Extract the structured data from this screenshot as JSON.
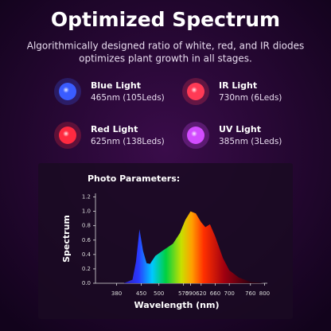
{
  "header": {
    "title": "Optimized Spectrum",
    "subtitle_lines": [
      "Algorithmically designed ratio of white, red, and IR diodes",
      "optimizes plant growth in all stages."
    ]
  },
  "leds": [
    {
      "name": "Blue Light",
      "detail": "465nm (105Leds)",
      "color": "#3a5cff"
    },
    {
      "name": "IR Light",
      "detail": "730nm (6Leds)",
      "color": "#ff3a55"
    },
    {
      "name": "Red Light",
      "detail": "625nm (138Leds)",
      "color": "#ff2a40"
    },
    {
      "name": "UV Light",
      "detail": "385nm (3Leds)",
      "color": "#d24cff"
    }
  ],
  "chart_data": {
    "type": "area",
    "title": "Photo Parameters:",
    "x_label": "Wavelength (nm)",
    "y_label": "Spectrum",
    "x": [
      400,
      425,
      435,
      445,
      455,
      465,
      475,
      490,
      510,
      540,
      560,
      575,
      590,
      605,
      620,
      632,
      645,
      660,
      682,
      700,
      727,
      760,
      800
    ],
    "values": [
      0.0,
      0.05,
      0.3,
      0.75,
      0.45,
      0.28,
      0.27,
      0.38,
      0.45,
      0.55,
      0.7,
      0.88,
      1.0,
      0.97,
      0.85,
      0.78,
      0.82,
      0.65,
      0.35,
      0.18,
      0.08,
      0.02,
      0.0
    ],
    "xlim": [
      320,
      808
    ],
    "ylim": [
      0,
      1.25
    ],
    "xticks": [
      380,
      450,
      500,
      570,
      590,
      620,
      660,
      700,
      760,
      800
    ],
    "yticks": [
      {
        "value": 0,
        "label": "0.0"
      },
      0.2,
      0.4,
      0.6,
      0.8,
      {
        "value": 1,
        "label": "1.0"
      },
      1.2
    ]
  }
}
